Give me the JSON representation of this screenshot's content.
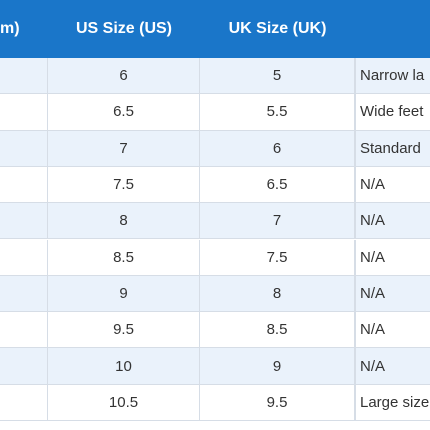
{
  "table": {
    "header": [
      "m)",
      "US Size (US)",
      "UK Size (UK)"
    ],
    "rows": [
      {
        "us": 6,
        "uk": 5,
        "note": "Narrow la"
      },
      {
        "us": 6.5,
        "uk": 5.5,
        "note": "Wide feet"
      },
      {
        "us": 7,
        "uk": 6,
        "note": "Standard"
      },
      {
        "us": 7.5,
        "uk": 6.5,
        "note": "N/A"
      },
      {
        "us": 8,
        "uk": 7,
        "note": "N/A"
      },
      {
        "us": 8.5,
        "uk": 7.5,
        "note": "N/A"
      },
      {
        "us": 9,
        "uk": 8,
        "note": "N/A"
      },
      {
        "us": 9.5,
        "uk": 8.5,
        "note": "N/A"
      },
      {
        "us": 10,
        "uk": 9,
        "note": "N/A"
      },
      {
        "us": 10.5,
        "uk": 9.5,
        "note": "Large size"
      }
    ]
  }
}
